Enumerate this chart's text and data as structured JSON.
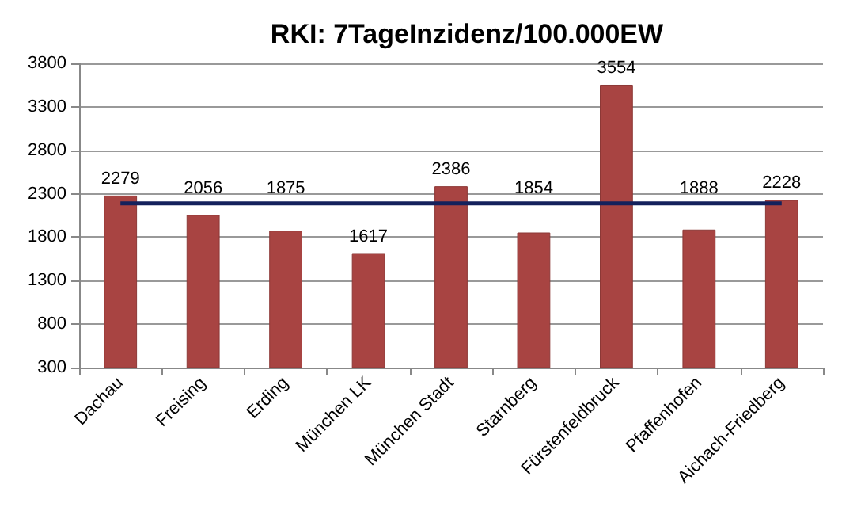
{
  "chart_data": {
    "type": "bar",
    "title": "RKI: 7TageInzidenz/100.000EW",
    "categories": [
      "Dachau",
      "Freising",
      "Erding",
      "München LK",
      "München Stadt",
      "Starnberg",
      "Fürstenfeldbruck",
      "Pfaffenhofen",
      "Aichach-Friedberg"
    ],
    "values": [
      2279,
      2056,
      1875,
      1617,
      2386,
      1854,
      3554,
      1888,
      2228
    ],
    "color": "#a84442",
    "ylim": [
      300,
      3800
    ],
    "yticks": [
      300,
      800,
      1300,
      1800,
      2300,
      2800,
      3300,
      3800
    ],
    "grid": "y",
    "data_labels": true,
    "ref_lines": [
      {
        "axis": "y",
        "value": 2190,
        "color": "#14215c"
      }
    ]
  }
}
